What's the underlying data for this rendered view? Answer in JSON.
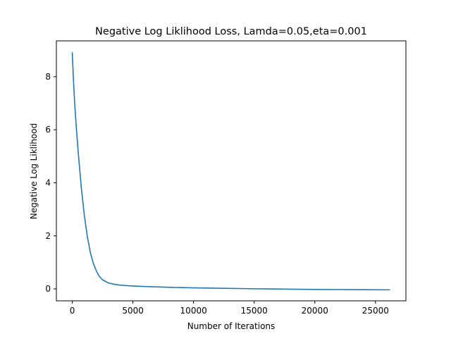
{
  "chart_data": {
    "type": "line",
    "title": "Negative Log Liklihood Loss, Lamda=0.05,eta=0.001",
    "xlabel": "Number of Iterations",
    "ylabel": "Negative Log Liklihood",
    "xlim": [
      -1310,
      27510
    ],
    "ylim": [
      -0.45,
      9.35
    ],
    "xticks": [
      0,
      5000,
      10000,
      15000,
      20000,
      25000
    ],
    "yticks": [
      0,
      2,
      4,
      6,
      8
    ],
    "grid": false,
    "line_color": "#1f77b4",
    "series": [
      {
        "x": [
          0,
          100,
          200,
          300,
          500,
          750,
          1000,
          1250,
          1500,
          1750,
          2000,
          2250,
          2500,
          3000,
          3500,
          4000,
          5000,
          6000,
          7000,
          8000,
          10000,
          12000,
          15000,
          18000,
          20000,
          22000,
          24000,
          26200
        ],
        "values": [
          8.92,
          7.85,
          7.0,
          6.3,
          5.1,
          3.8,
          2.75,
          1.95,
          1.35,
          0.95,
          0.66,
          0.46,
          0.34,
          0.22,
          0.17,
          0.14,
          0.11,
          0.09,
          0.075,
          0.06,
          0.04,
          0.025,
          0.005,
          -0.01,
          -0.02,
          -0.025,
          -0.03,
          -0.035
        ]
      }
    ]
  }
}
